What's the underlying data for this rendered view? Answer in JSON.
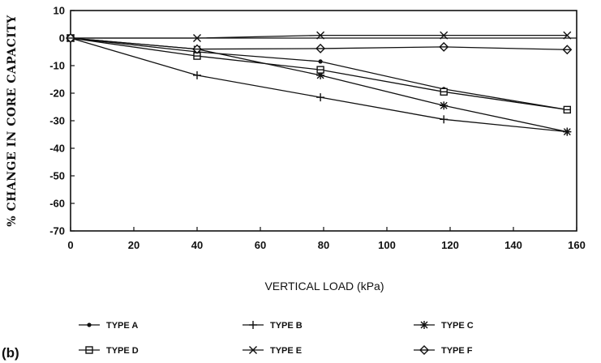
{
  "panel_label": "(b)",
  "chart_data": {
    "type": "line",
    "xlabel": "VERTICAL LOAD (kPa)",
    "ylabel": "% CHANGE IN CORE CAPACITY",
    "xlim": [
      0,
      160
    ],
    "ylim": [
      -70,
      10
    ],
    "xticks": [
      0,
      20,
      40,
      60,
      80,
      100,
      120,
      140,
      160
    ],
    "yticks": [
      10,
      0,
      -10,
      -20,
      -30,
      -40,
      -50,
      -60,
      -70
    ],
    "grid": false,
    "legend_position": "bottom",
    "series": [
      {
        "name": "TYPE A",
        "marker": "dot",
        "x": [
          0,
          40,
          79,
          118,
          157
        ],
        "y": [
          0,
          -5,
          -8.5,
          -18.5,
          -26
        ]
      },
      {
        "name": "TYPE B",
        "marker": "plus",
        "x": [
          0,
          40,
          79,
          118,
          157
        ],
        "y": [
          0,
          -13.5,
          -21.5,
          -29.5,
          -34
        ]
      },
      {
        "name": "TYPE C",
        "marker": "star",
        "x": [
          0,
          40,
          79,
          118,
          157
        ],
        "y": [
          0,
          -4,
          -13.5,
          -24.5,
          -34
        ]
      },
      {
        "name": "TYPE D",
        "marker": "square",
        "x": [
          0,
          40,
          79,
          118,
          157
        ],
        "y": [
          0,
          -6.5,
          -11.5,
          -19.5,
          -26
        ]
      },
      {
        "name": "TYPE E",
        "marker": "x",
        "x": [
          0,
          40,
          79,
          118,
          157
        ],
        "y": [
          0,
          0,
          1,
          1,
          1
        ]
      },
      {
        "name": "TYPE F",
        "marker": "diamond",
        "x": [
          0,
          40,
          79,
          118,
          157
        ],
        "y": [
          0,
          -4,
          -3.8,
          -3.2,
          -4.2
        ]
      }
    ]
  }
}
